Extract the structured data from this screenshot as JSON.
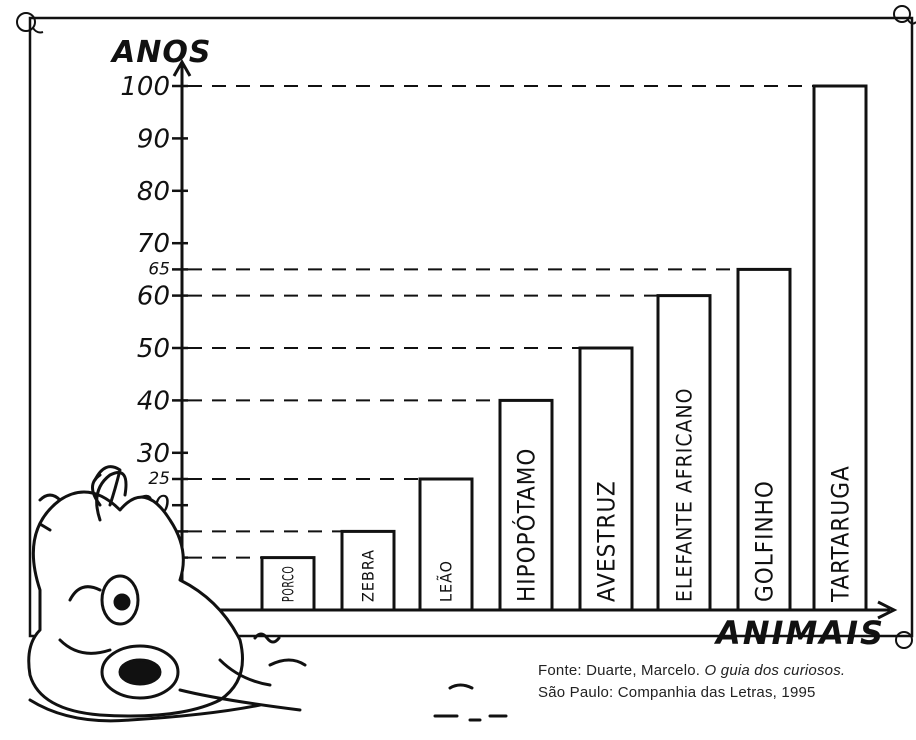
{
  "chart_data": {
    "type": "bar",
    "ylabel": "ANOS",
    "xlabel": "ANIMAIS",
    "ylim": [
      0,
      100
    ],
    "y_ticks": [
      "10",
      "15",
      "20",
      "25",
      "30",
      "40",
      "50",
      "60",
      "65",
      "70",
      "80",
      "90",
      "100"
    ],
    "categories": [
      "PORCO",
      "ZEBRA",
      "LEÃO",
      "HIPOPÓTAMO",
      "AVESTRUZ",
      "ELEFANTE AFRICANO",
      "GOLFINHO",
      "TARTARUGA"
    ],
    "values": [
      10,
      15,
      25,
      40,
      50,
      60,
      65,
      100
    ],
    "grid": "dashed reference lines from y-axis to each bar top",
    "legend": "none"
  },
  "source": {
    "line1_prefix": "Fonte: Duarte, Marcelo.",
    "line1_book": "O guia dos curiosos.",
    "line2": "São Paulo: Companhia das Letras, 1995"
  },
  "colors": {
    "ink": "#111111",
    "paper": "#ffffff"
  }
}
